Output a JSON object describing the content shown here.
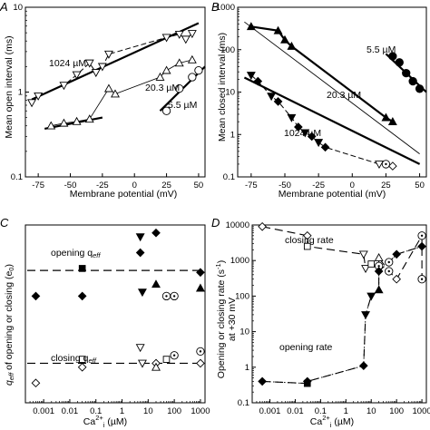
{
  "chart_data": [
    {
      "panel": "A",
      "type": "scatter",
      "xlabel": "Membrane potential (mV)",
      "ylabel": "Mean open interval (ms)",
      "xscale": "linear",
      "yscale": "log",
      "xlim": [
        -85,
        55
      ],
      "ylim": [
        0.1,
        10
      ],
      "xticks": [
        -75,
        -50,
        -25,
        0,
        25,
        50
      ],
      "yticks": [
        0.1,
        1,
        10
      ],
      "series": [
        {
          "name": "1024 µM",
          "marker": "inverted-triangle",
          "points": [
            [
              -80,
              0.75
            ],
            [
              -75,
              0.9
            ],
            [
              -55,
              1.2
            ],
            [
              -45,
              1.6
            ],
            [
              -35,
              2.2
            ],
            [
              -30,
              1.7
            ],
            [
              -25,
              2.0
            ],
            [
              -20,
              2.8
            ],
            [
              25,
              4.4
            ],
            [
              35,
              4.8
            ],
            [
              40,
              4.2
            ],
            [
              45,
              4.9
            ]
          ],
          "fit": [
            [
              -80,
              0.82
            ],
            [
              50,
              6.5
            ]
          ]
        },
        {
          "name": "20.3 µM",
          "marker": "triangle",
          "points": [
            [
              -65,
              0.4
            ],
            [
              -55,
              0.43
            ],
            [
              -45,
              0.45
            ],
            [
              -35,
              0.48
            ],
            [
              -20,
              1.1
            ],
            [
              -15,
              0.95
            ],
            [
              20,
              1.5
            ],
            [
              25,
              1.8
            ],
            [
              35,
              2.2
            ],
            [
              45,
              2.4
            ]
          ],
          "fit": [
            [
              -70,
              0.37
            ],
            [
              -25,
              0.5
            ]
          ]
        },
        {
          "name": "5.5 µM",
          "marker": "circle",
          "points": [
            [
              25,
              0.6
            ],
            [
              35,
              1.1
            ],
            [
              45,
              1.5
            ],
            [
              50,
              1.8
            ]
          ],
          "fit": [
            [
              20,
              0.6
            ],
            [
              55,
              2.0
            ]
          ]
        }
      ]
    },
    {
      "panel": "B",
      "type": "scatter",
      "xlabel": "Membrane potential (mV)",
      "ylabel": "Mean closed interval (ms)",
      "xscale": "linear",
      "yscale": "log",
      "xlim": [
        -85,
        55
      ],
      "ylim": [
        0.1,
        1000
      ],
      "xticks": [
        -75,
        -50,
        -25,
        0,
        25,
        50
      ],
      "yticks": [
        0.1,
        1,
        10,
        100,
        1000
      ],
      "series": [
        {
          "name": "5.5 µM",
          "marker": "filled-circle",
          "points": [
            [
              30,
              70
            ],
            [
              35,
              50
            ],
            [
              40,
              28
            ],
            [
              45,
              18
            ],
            [
              50,
              12
            ]
          ],
          "fit": [
            [
              25,
              80
            ],
            [
              55,
              10
            ]
          ]
        },
        {
          "name": "20.3 µM",
          "marker": "filled-triangle",
          "points": [
            [
              -75,
              350
            ],
            [
              -55,
              280
            ],
            [
              -50,
              170
            ],
            [
              -45,
              120
            ],
            [
              25,
              2.5
            ],
            [
              30,
              2.0
            ]
          ],
          "fit": [
            [
              -80,
              450
            ],
            [
              50,
              0.35
            ]
          ]
        },
        {
          "name": "1024 µM",
          "marker": "mixed",
          "points": [
            [
              -75,
              25
            ],
            [
              -70,
              18
            ],
            [
              -60,
              8
            ],
            [
              -55,
              6
            ],
            [
              -45,
              2.5
            ],
            [
              -40,
              1.5
            ],
            [
              -35,
              1.1
            ],
            [
              -30,
              0.9
            ],
            [
              -25,
              0.65
            ],
            [
              -20,
              0.5
            ],
            [
              20,
              0.2
            ],
            [
              25,
              0.2
            ],
            [
              30,
              0.18
            ]
          ],
          "fit": [
            [
              -80,
              22
            ],
            [
              50,
              0.2
            ]
          ]
        }
      ]
    },
    {
      "panel": "C",
      "type": "scatter",
      "xlabel": "Ca2+i (µM)",
      "ylabel": "q_eff of opening or closing (e0)",
      "xscale": "log",
      "yscale": "linear",
      "xlim": [
        0.0002,
        1500
      ],
      "ylim": [
        -1.5,
        3
      ],
      "xticks": [
        0.001,
        0.01,
        0.1,
        1,
        10,
        100,
        1000
      ],
      "xticklabels": [
        "0.001",
        "0.01",
        "0.1",
        "1",
        "10",
        "100",
        "1000"
      ],
      "annotations": [
        "opening q_eff",
        "closing q_eff"
      ],
      "opening_mean": 1.85,
      "closing_mean": -0.5,
      "opening_points": [
        [
          0.0005,
          1.2
        ],
        [
          0.03,
          1.9
        ],
        [
          0.03,
          1.2
        ],
        [
          5,
          2.7
        ],
        [
          5,
          2.3
        ],
        [
          6,
          1.3
        ],
        [
          20,
          2.8
        ],
        [
          20,
          1.5
        ],
        [
          50,
          1.2
        ],
        [
          100,
          1.2
        ],
        [
          1000,
          1.8
        ],
        [
          1000,
          1.4
        ]
      ],
      "closing_points": [
        [
          0.0005,
          -1.0
        ],
        [
          0.03,
          -0.4
        ],
        [
          0.03,
          -0.6
        ],
        [
          5,
          -0.1
        ],
        [
          6,
          -0.5
        ],
        [
          20,
          -0.5
        ],
        [
          20,
          -0.6
        ],
        [
          50,
          -0.4
        ],
        [
          100,
          -0.3
        ],
        [
          1000,
          -0.2
        ],
        [
          1000,
          -0.5
        ]
      ]
    },
    {
      "panel": "D",
      "type": "scatter",
      "xlabel": "Ca2+i (µM)",
      "ylabel": "Opening or closing rate (s-1) at +30 mV",
      "xscale": "log",
      "yscale": "log",
      "xlim": [
        0.0002,
        1500
      ],
      "ylim": [
        0.1,
        10000
      ],
      "xticks": [
        0.001,
        0.01,
        0.1,
        1,
        10,
        100,
        1000
      ],
      "xticklabels": [
        "0.001",
        "0.01",
        "0.1",
        "1",
        "10",
        "100",
        "1000"
      ],
      "yticks": [
        0.1,
        1,
        10,
        100,
        1000,
        10000
      ],
      "annotations": [
        "closing rate",
        "opening rate"
      ],
      "closing_points": [
        [
          0.0005,
          9000
        ],
        [
          0.03,
          5000
        ],
        [
          0.03,
          2500
        ],
        [
          5,
          1500
        ],
        [
          6,
          600
        ],
        [
          10,
          800
        ],
        [
          20,
          700
        ],
        [
          20,
          1200
        ],
        [
          50,
          500
        ],
        [
          100,
          300
        ],
        [
          1000,
          5000
        ],
        [
          1000,
          300
        ]
      ],
      "opening_points": [
        [
          0.0005,
          0.4
        ],
        [
          0.03,
          0.35
        ],
        [
          0.03,
          0.4
        ],
        [
          5,
          1.1
        ],
        [
          6,
          30
        ],
        [
          10,
          100
        ],
        [
          20,
          150
        ],
        [
          20,
          500
        ],
        [
          50,
          900
        ],
        [
          100,
          1500
        ],
        [
          1000,
          2500
        ]
      ]
    }
  ],
  "labels": {
    "panel_a": "A",
    "panel_b": "B",
    "panel_c": "C",
    "panel_d": "D",
    "a_xlabel": "Membrane potential (mV)",
    "a_ylabel": "Mean open interval (ms)",
    "b_xlabel": "Membrane potential (mV)",
    "b_ylabel": "Mean closed interval (ms)",
    "c_xlabel": "Ca",
    "c_xlabel_sup": "2+",
    "c_xlabel_sub": "i",
    "c_xlabel_unit": " (µM)",
    "c_ylabel_q": "q",
    "c_ylabel_sub": "eff",
    "c_ylabel_rest": " of opening or closing (e",
    "c_ylabel_sub2": "0",
    "c_ylabel_end": ")",
    "d_xlabel": "Ca",
    "d_xlabel_sup": "2+",
    "d_xlabel_sub": "i",
    "d_xlabel_unit": " (µM)",
    "d_ylabel_line1": "Opening or closing rate (s",
    "d_ylabel_sup": "-1",
    "d_ylabel_end": ")",
    "d_ylabel_line2": "at +30 mV",
    "a_series_1024": "1024 µM",
    "a_series_20": "20.3 µM",
    "a_series_5": "5.5 µM",
    "b_series_5": "5.5 µM",
    "b_series_20": "20.3 µM",
    "b_series_1024": "1024 µM",
    "c_open_label": "opening q",
    "c_open_sub": "eff",
    "c_close_label": "closing q",
    "c_close_sub": "eff",
    "d_close_label": "closing rate",
    "d_open_label": "opening rate"
  }
}
